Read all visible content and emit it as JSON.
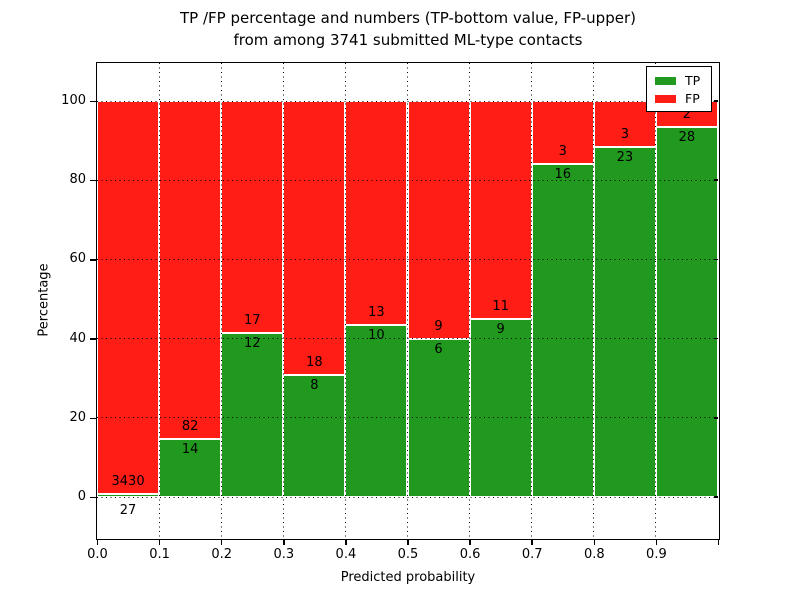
{
  "title": {
    "line1": "TP /FP percentage and numbers (TP-bottom value, FP-upper)",
    "line2": "from among 3741 submitted ML-type contacts"
  },
  "chart_data": {
    "type": "bar",
    "stacked": true,
    "normalized_to": 100,
    "title": "TP /FP percentage and numbers (TP-bottom value, FP-upper) from among 3741 submitted ML-type contacts",
    "xlabel": "Predicted probability",
    "ylabel": "Percentage",
    "total_contacts": 3741,
    "categories": [
      "0.0-0.1",
      "0.1-0.2",
      "0.2-0.3",
      "0.3-0.4",
      "0.4-0.5",
      "0.5-0.6",
      "0.6-0.7",
      "0.7-0.8",
      "0.8-0.9",
      "0.9-1.0"
    ],
    "series": [
      {
        "name": "TP",
        "color": "#21991e",
        "counts": [
          27,
          14,
          12,
          8,
          10,
          6,
          9,
          16,
          23,
          28
        ]
      },
      {
        "name": "FP",
        "color": "#ff1d15",
        "counts": [
          3430,
          82,
          17,
          18,
          13,
          9,
          11,
          3,
          3,
          2
        ]
      }
    ],
    "tp_percent": [
      0.78,
      14.58,
      41.38,
      30.77,
      43.48,
      40.0,
      45.0,
      84.21,
      88.46,
      93.33
    ],
    "x_tick_labels": [
      "0.0",
      "0.1",
      "0.2",
      "0.3",
      "0.4",
      "0.5",
      "0.6",
      "0.7",
      "0.8",
      "0.9"
    ],
    "y_ticks": [
      0,
      20,
      40,
      60,
      80,
      100
    ],
    "xlim": [
      0.0,
      1.0
    ],
    "ylim": [
      -10.8,
      109.4
    ],
    "grid": "dotted",
    "legend_position": "upper right"
  },
  "colors": {
    "tp_green": "#21991e",
    "fp_red": "#ff1d15",
    "grid": "#000000",
    "background": "#ffffff"
  }
}
